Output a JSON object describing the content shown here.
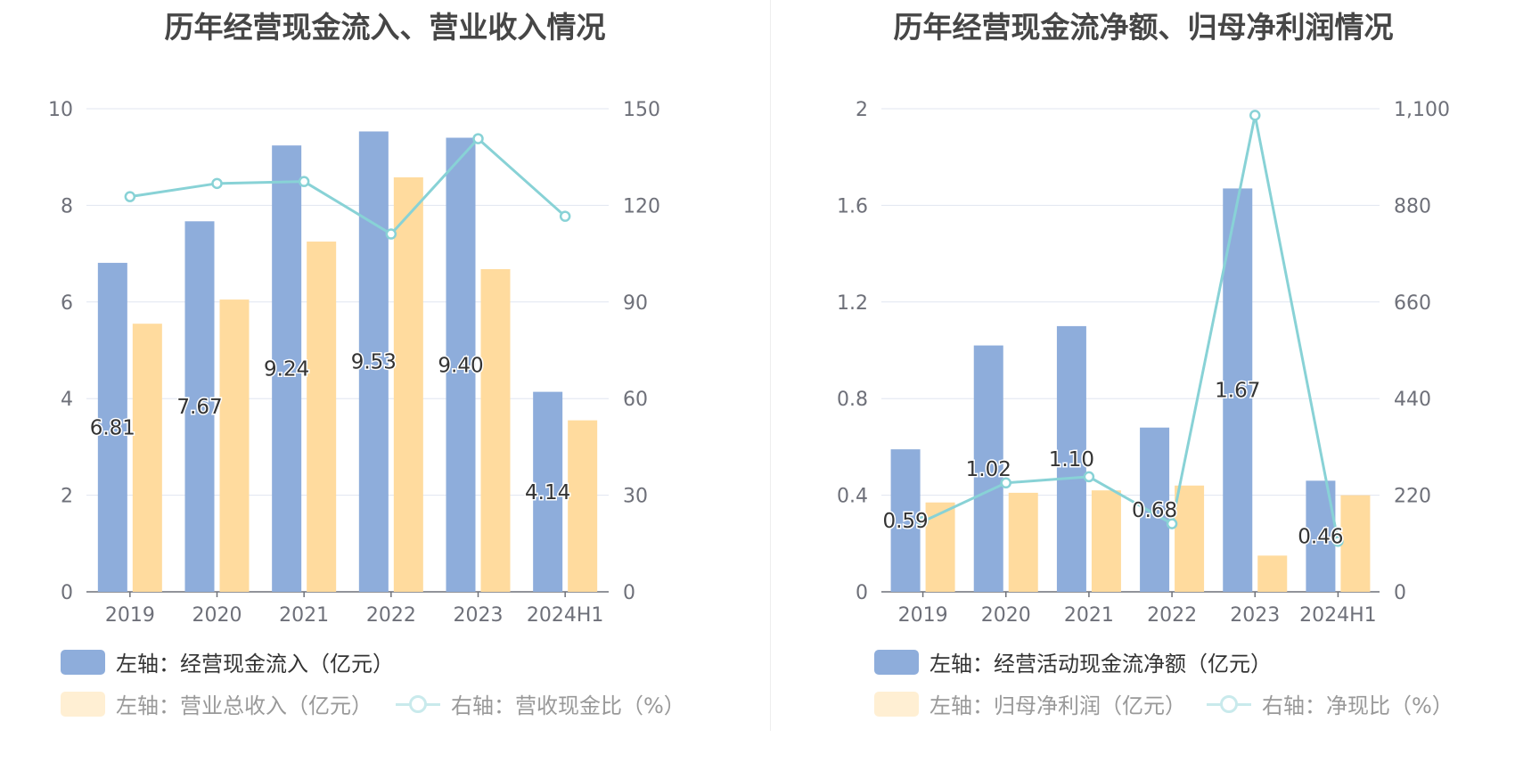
{
  "colors": {
    "bar_primary": "#8eaddb",
    "bar_secondary": "#ffdb9e",
    "line": "#88d2d6",
    "grid": "#e0e6f1",
    "axis": "#6e7079"
  },
  "chart_data": [
    {
      "type": "bar",
      "title": "历年经营现金流入、营业收入情况",
      "categories": [
        "2019",
        "2020",
        "2021",
        "2022",
        "2023",
        "2024H1"
      ],
      "y_left": {
        "ylim": [
          0,
          10
        ],
        "ticks": [
          "0",
          "2",
          "4",
          "6",
          "8",
          "10"
        ]
      },
      "y_right": {
        "ylim": [
          0,
          150
        ],
        "ticks": [
          "0",
          "30",
          "60",
          "90",
          "120",
          "150"
        ]
      },
      "grid": true,
      "series": [
        {
          "name": "左轴：经营现金流入（亿元）",
          "type": "bar",
          "axis": "left",
          "values": [
            6.81,
            7.67,
            9.24,
            9.53,
            9.4,
            4.14
          ],
          "labels": [
            "6.81",
            "7.67",
            "9.24",
            "9.53",
            "9.40",
            "4.14"
          ],
          "show_labels": true
        },
        {
          "name": "左轴：营业总收入（亿元）",
          "type": "bar",
          "axis": "left",
          "values": [
            5.55,
            6.05,
            7.25,
            8.58,
            6.68,
            3.55
          ],
          "show_labels": false
        },
        {
          "name": "右轴：营收现金比（%）",
          "type": "line",
          "axis": "right",
          "values": [
            122.7,
            126.8,
            127.4,
            111.1,
            140.7,
            116.6
          ],
          "show_labels": false
        }
      ],
      "legend_position": "bottom"
    },
    {
      "type": "bar",
      "title": "历年经营现金流净额、归母净利润情况",
      "categories": [
        "2019",
        "2020",
        "2021",
        "2022",
        "2023",
        "2024H1"
      ],
      "y_left": {
        "ylim": [
          0,
          2
        ],
        "ticks": [
          "0",
          "0.4",
          "0.8",
          "1.2",
          "1.6",
          "2"
        ]
      },
      "y_right": {
        "ylim": [
          0,
          1100
        ],
        "ticks": [
          "0",
          "220",
          "440",
          "660",
          "880",
          "1,100"
        ]
      },
      "grid": true,
      "series": [
        {
          "name": "左轴：经营活动现金流净额（亿元）",
          "type": "bar",
          "axis": "left",
          "values": [
            0.59,
            1.02,
            1.1,
            0.68,
            1.67,
            0.46
          ],
          "labels": [
            "0.59",
            "1.02",
            "1.10",
            "0.68",
            "1.67",
            "0.46"
          ],
          "show_labels": true
        },
        {
          "name": "左轴：归母净利润（亿元）",
          "type": "bar",
          "axis": "left",
          "values": [
            0.37,
            0.41,
            0.42,
            0.44,
            0.15,
            0.4
          ],
          "show_labels": false
        },
        {
          "name": "右轴：净现比（%）",
          "type": "line",
          "axis": "right",
          "values": [
            160,
            248,
            262,
            155,
            1085,
            115
          ],
          "show_labels": false
        }
      ],
      "legend_position": "bottom"
    }
  ]
}
